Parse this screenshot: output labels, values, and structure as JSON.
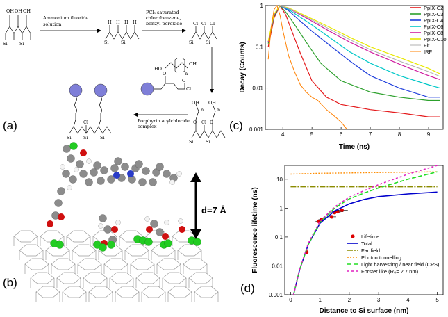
{
  "panels": {
    "a": "(a)",
    "b": "(b)",
    "c": "(c)",
    "d": "(d)"
  },
  "scheme": {
    "step1_line1": "Ammonium fluoride",
    "step1_line2": "solution",
    "step2_line1": "PCl₅ saturated",
    "step2_line2": "chlorobenzene,",
    "step2_line3": "benzyl peroxide",
    "step4_line1": "Porphyrin acylchloride",
    "step4_line2": "complex",
    "si": "Si",
    "oh": "OH",
    "o": "O",
    "cl": "Cl",
    "h": "H",
    "n": "n",
    "ho": "HO",
    "reagent_oh": "OH"
  },
  "molecule": {
    "distance_label": "d=7 Å"
  },
  "colors": {
    "C2": "#e41a1c",
    "C3": "#2ca02c",
    "C4": "#1f3fdc",
    "C6": "#00c8c8",
    "C8": "#d01ca0",
    "C10": "#e8e800",
    "Fit": "#b0b0b0",
    "IRF": "#ff8000",
    "total": "#0000cc",
    "far_field": "#8b8b00",
    "photon": "#ff8c00",
    "light": "#22dd22",
    "forster": "#e020c0",
    "lifetime": "#dd0000"
  },
  "chart_data": [
    {
      "type": "line",
      "panel": "c",
      "xlabel": "Time (ns)",
      "ylabel": "Decay (Counts)",
      "xlim": [
        3.4,
        9.5
      ],
      "ylim": [
        0.001,
        1
      ],
      "yscale": "log",
      "xticks": [
        "4",
        "5",
        "6",
        "7",
        "8",
        "9"
      ],
      "yticks": [
        "0.001",
        "0.01",
        "0.1",
        "1"
      ],
      "legend_position": "top-right",
      "series": [
        {
          "name": "PpIX-C2",
          "x": [
            3.5,
            3.7,
            3.9,
            4.1,
            4.3,
            4.6,
            5.0,
            5.5,
            6.0,
            7.0,
            8.0,
            9.0,
            9.4
          ],
          "y": [
            0.1,
            0.5,
            1.0,
            0.6,
            0.25,
            0.07,
            0.015,
            0.006,
            0.004,
            0.003,
            0.0025,
            0.002,
            0.002
          ]
        },
        {
          "name": "PpIX-C3",
          "x": [
            3.5,
            3.7,
            3.9,
            4.1,
            4.4,
            4.8,
            5.3,
            6.0,
            7.0,
            8.0,
            9.0,
            9.4
          ],
          "y": [
            0.12,
            0.55,
            1.0,
            0.7,
            0.35,
            0.13,
            0.04,
            0.015,
            0.008,
            0.006,
            0.005,
            0.005
          ]
        },
        {
          "name": "PpIX-C4",
          "x": [
            3.5,
            3.7,
            3.9,
            4.2,
            4.6,
            5.0,
            5.6,
            6.3,
            7.0,
            8.0,
            9.0,
            9.4
          ],
          "y": [
            0.13,
            0.58,
            1.0,
            0.75,
            0.42,
            0.24,
            0.11,
            0.045,
            0.02,
            0.01,
            0.006,
            0.006
          ]
        },
        {
          "name": "PpIX-C6",
          "x": [
            3.5,
            3.7,
            3.9,
            4.2,
            4.6,
            5.0,
            5.6,
            6.3,
            7.0,
            8.0,
            9.0,
            9.4
          ],
          "y": [
            0.13,
            0.6,
            1.0,
            0.8,
            0.52,
            0.34,
            0.17,
            0.075,
            0.04,
            0.02,
            0.012,
            0.01
          ]
        },
        {
          "name": "PpIX-C8",
          "x": [
            3.5,
            3.7,
            3.9,
            4.2,
            4.6,
            5.0,
            5.6,
            6.3,
            7.0,
            8.0,
            9.0,
            9.4
          ],
          "y": [
            0.13,
            0.6,
            1.0,
            0.85,
            0.6,
            0.42,
            0.24,
            0.13,
            0.075,
            0.038,
            0.02,
            0.016
          ]
        },
        {
          "name": "PpIX-C10",
          "x": [
            3.5,
            3.7,
            3.9,
            4.2,
            4.6,
            5.0,
            5.6,
            6.3,
            7.0,
            8.0,
            9.0,
            9.4
          ],
          "y": [
            0.14,
            0.62,
            1.0,
            0.88,
            0.65,
            0.48,
            0.3,
            0.17,
            0.1,
            0.055,
            0.03,
            0.022
          ]
        },
        {
          "name": "Fit",
          "x": [
            3.9,
            4.2,
            4.6,
            5.0,
            5.6,
            6.3,
            7.0,
            8.0,
            9.0,
            9.4
          ],
          "y": [
            1.0,
            0.86,
            0.62,
            0.45,
            0.27,
            0.15,
            0.085,
            0.045,
            0.025,
            0.019
          ]
        },
        {
          "name": "IRF",
          "x": [
            3.5,
            3.6,
            3.7,
            3.8,
            3.9,
            4.0,
            4.2,
            4.4,
            4.6,
            4.8,
            5.0,
            5.2,
            5.5,
            5.8,
            6.0,
            6.2
          ],
          "y": [
            0.05,
            0.3,
            0.8,
            1.0,
            0.6,
            0.25,
            0.06,
            0.025,
            0.012,
            0.008,
            0.006,
            0.005,
            0.003,
            0.002,
            0.0015,
            0.001
          ]
        }
      ]
    },
    {
      "type": "line",
      "panel": "d",
      "xlabel": "Distance to Si surface (nm)",
      "ylabel": "Fluorescence lifetime (ns)",
      "xlim": [
        -0.2,
        5.2
      ],
      "ylim": [
        0.001,
        30
      ],
      "yscale": "log",
      "xticks": [
        "0",
        "1",
        "2",
        "3",
        "4",
        "5"
      ],
      "yticks": [
        "0.001",
        "0.01",
        "0.1",
        "1",
        "10"
      ],
      "legend_position": "bottom-right",
      "series": [
        {
          "name": "Lifetime",
          "style": "points",
          "x": [
            0.55,
            0.95,
            1.05,
            1.4,
            1.5,
            1.6,
            1.75
          ],
          "y": [
            0.03,
            0.35,
            0.4,
            0.5,
            0.7,
            0.75,
            0.85
          ],
          "xerr": [
            0.05,
            0.1,
            0.1,
            0.15,
            0.2,
            0.2,
            0.2
          ]
        },
        {
          "name": "Total",
          "x": [
            0.1,
            0.3,
            0.6,
            1.0,
            1.5,
            2.0,
            2.5,
            3.0,
            4.0,
            5.0
          ],
          "y": [
            0.001,
            0.007,
            0.055,
            0.3,
            0.8,
            1.4,
            2.0,
            2.5,
            3.1,
            3.6
          ]
        },
        {
          "name": "Far field",
          "x": [
            0,
            5
          ],
          "y": [
            5.5,
            5.5
          ]
        },
        {
          "name": "Photon tunnelling",
          "x": [
            0,
            1,
            2,
            3,
            4,
            5
          ],
          "y": [
            15,
            16,
            16.5,
            17,
            17.5,
            18
          ]
        },
        {
          "name": "Light harvesting / near field (CPS)",
          "x": [
            0.1,
            0.3,
            0.6,
            1.0,
            1.5,
            2.0,
            2.5,
            3.0,
            4.0,
            5.0
          ],
          "y": [
            0.001,
            0.007,
            0.055,
            0.32,
            1.0,
            2.1,
            3.3,
            5.0,
            10,
            18
          ]
        },
        {
          "name": "Forster like (R₀= 2.7 nm)",
          "x": [
            0.1,
            0.3,
            0.6,
            1.0,
            1.5,
            2.0,
            2.5,
            3.0,
            4.0,
            5.0
          ],
          "y": [
            0.001,
            0.007,
            0.06,
            0.35,
            1.1,
            2.4,
            4.0,
            6.5,
            15,
            30
          ]
        }
      ]
    }
  ]
}
